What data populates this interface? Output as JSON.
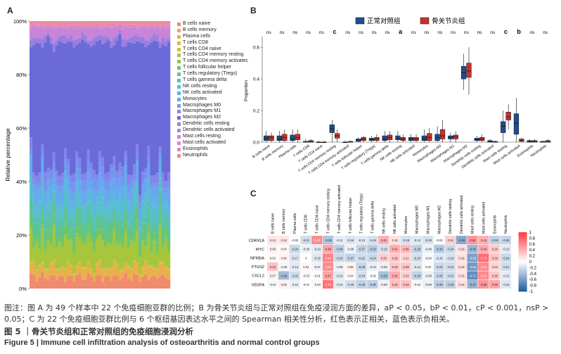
{
  "panelA": {
    "label": "A",
    "ylabel": "Relative percentage",
    "yticks": [
      "0%",
      "20%",
      "40%",
      "60%",
      "80%",
      "100%"
    ],
    "cells": [
      "B cells naive",
      "B cells memory",
      "Plasma cells",
      "T cells CD8",
      "T cells CD4 naive",
      "T cells CD4 memory resting",
      "T cells CD4 memory activated",
      "T cells follicular helper",
      "T cells regulatory (Tregs)",
      "T cells gamma delta",
      "NK cells resting",
      "NK cells activated",
      "Monocytes",
      "Macrophages M0",
      "Macrophages M1",
      "Macrophages M2",
      "Dendritic cells resting",
      "Dendritic cells activated",
      "Mast cells resting",
      "Mast cells activated",
      "Eosinophils",
      "Neutrophils"
    ],
    "legend": [
      "B cells naive",
      "B cells memory",
      "Plasma cells",
      "T cells CD8",
      "T cells CD4 naive",
      "T cells CD4 memory resting",
      "T cells CD4 memory activatec",
      "T cells follicular helper",
      "T cells regulatory (Tregs)",
      "T cells gamma delta",
      "NK cells resting",
      "NK cells activated",
      "Monocytes",
      "Macrophages M0",
      "Macrophages M1",
      "Macrophages M2",
      "Dendritic cells resting",
      "Dendritic cells activated",
      "Mast cells resting",
      "Mast cells activated",
      "Eosinophils",
      "Neutrophils"
    ],
    "colors": [
      "#f08b6e",
      "#f5a05c",
      "#e8b04a",
      "#d8bd3f",
      "#c5c43a",
      "#a7c63c",
      "#8cc84a",
      "#6fc66a",
      "#5ec48d",
      "#57c2ad",
      "#58c0c9",
      "#5cb8e0",
      "#66aaee",
      "#7496f0",
      "#8584ec",
      "#6a6ad8",
      "#9a7fe0",
      "#b27fe2",
      "#c884d8",
      "#dc88c6",
      "#e889b0",
      "#ef8a98"
    ]
  },
  "panelB": {
    "label": "B",
    "ylabel": "Proportion",
    "legend": [
      "正常对照组",
      "骨关节炎组"
    ],
    "legend_colors": [
      "#1f4e8c",
      "#c8322e"
    ],
    "yticks": [
      "0.0",
      "0.2",
      "0.4",
      "0.6"
    ],
    "ylim": [
      0,
      0.65
    ],
    "categories": [
      "B cells naive",
      "B cells memory",
      "Plasma cells",
      "T cells CD8",
      "T cells CD4 naive",
      "T cells CD4 memory resting",
      "T cells CD4 memory activated",
      "T cells follicular helper",
      "T cells regulatory (Tregs)",
      "T cells gamma delta",
      "NK cells resting",
      "NK cells activated",
      "Monocytes",
      "Macrophages M0",
      "Macrophages M1",
      "Macrophages M2",
      "Dendritic cells resting",
      "Dendritic cells activated",
      "Mast cells resting",
      "Mast cells activated",
      "Eosinophils",
      "Neutrophils"
    ],
    "significance": [
      "ns",
      "ns",
      "ns",
      "ns",
      "ns",
      "c",
      "ns",
      "ns",
      "ns",
      "ns",
      "a",
      "ns",
      "ns",
      "ns",
      "ns",
      "ns",
      "ns",
      "ns",
      "c",
      "b",
      "ns",
      "ns"
    ],
    "control": [
      [
        0,
        0.01,
        0.025,
        0.04,
        0.07
      ],
      [
        0,
        0.01,
        0.02,
        0.04,
        0.07
      ],
      [
        0,
        0.01,
        0.02,
        0.045,
        0.08
      ],
      [
        0,
        0,
        0,
        0.005,
        0.02
      ],
      [
        0,
        0,
        0,
        0,
        0.01
      ],
      [
        0,
        0.06,
        0.085,
        0.11,
        0.14
      ],
      [
        0,
        0,
        0,
        0,
        0.01
      ],
      [
        0,
        0.005,
        0.015,
        0.02,
        0.03
      ],
      [
        0,
        0.01,
        0.015,
        0.025,
        0.04
      ],
      [
        0,
        0.01,
        0.02,
        0.04,
        0.07
      ],
      [
        0,
        0.015,
        0.025,
        0.04,
        0.07
      ],
      [
        0,
        0.01,
        0.02,
        0.03,
        0.05
      ],
      [
        0,
        0.01,
        0.02,
        0.04,
        0.08
      ],
      [
        0,
        0.01,
        0.03,
        0.05,
        0.1
      ],
      [
        0,
        0.02,
        0.03,
        0.04,
        0.06
      ],
      [
        0.33,
        0.4,
        0.44,
        0.48,
        0.56
      ],
      [
        0,
        0.01,
        0.015,
        0.025,
        0.04
      ],
      [
        0,
        0,
        0.005,
        0.01,
        0.02
      ],
      [
        0,
        0.06,
        0.1,
        0.13,
        0.2
      ],
      [
        0,
        0.05,
        0.12,
        0.18,
        0.28
      ],
      [
        0,
        0,
        0.005,
        0.01,
        0.02
      ],
      [
        0,
        0,
        0,
        0.005,
        0.01
      ]
    ],
    "oa": [
      [
        0,
        0.01,
        0.03,
        0.04,
        0.06
      ],
      [
        0,
        0.01,
        0.03,
        0.05,
        0.08
      ],
      [
        0,
        0.015,
        0.03,
        0.05,
        0.08
      ],
      [
        0,
        0,
        0.005,
        0.01,
        0.02
      ],
      [
        0,
        0,
        0,
        0,
        0.01
      ],
      [
        0,
        0.025,
        0.04,
        0.055,
        0.08
      ],
      [
        0,
        0,
        0,
        0.005,
        0.01
      ],
      [
        0,
        0.01,
        0.02,
        0.03,
        0.04
      ],
      [
        0,
        0.01,
        0.02,
        0.03,
        0.05
      ],
      [
        0,
        0.015,
        0.03,
        0.045,
        0.07
      ],
      [
        0,
        0.01,
        0.02,
        0.03,
        0.05
      ],
      [
        0,
        0.01,
        0.02,
        0.03,
        0.05
      ],
      [
        0,
        0.01,
        0.03,
        0.055,
        0.09
      ],
      [
        0,
        0.02,
        0.04,
        0.08,
        0.14
      ],
      [
        0,
        0.02,
        0.035,
        0.045,
        0.07
      ],
      [
        0.3,
        0.41,
        0.45,
        0.5,
        0.6
      ],
      [
        0,
        0.01,
        0.02,
        0.03,
        0.05
      ],
      [
        0,
        0,
        0,
        0.005,
        0.01
      ],
      [
        0.08,
        0.14,
        0.16,
        0.19,
        0.24
      ],
      [
        0,
        0.005,
        0.01,
        0.02,
        0.03
      ],
      [
        0,
        0,
        0.005,
        0.01,
        0.02
      ],
      [
        0,
        0,
        0.005,
        0.01,
        0.02
      ]
    ]
  },
  "panelC": {
    "label": "C",
    "genes": [
      "CDKN1A",
      "MYC",
      "NFKBIA",
      "PTGS2",
      "CXCL2",
      "VEGFA"
    ],
    "cells": [
      "B cells naive",
      "B cells memory",
      "Plasma cells",
      "T cells CD8",
      "T cells CD4 naive",
      "T cells CD4 memory resting",
      "T cells CD4 memory activated",
      "T cells follicular helper",
      "T cells regulatory (Tregs)",
      "T cells gamma delta",
      "NK cells resting",
      "NK cells activated",
      "Monocytes",
      "Macrophages M0",
      "Macrophages M1",
      "Macrophages M2",
      "Dendritic cells resting",
      "Dendritic cells activated",
      "Mast cells resting",
      "Mast cells activated",
      "Eosinophils",
      "Neutrophils"
    ],
    "values": [
      [
        0.14,
        0.13,
        -0.02,
        -0.21,
        0.6,
        -0.36,
        -0.11,
        -0.16,
        -0.13,
        -0.19,
        0.4,
        0.15,
        -0.19,
        -0.14,
        -0.19,
        -0.02,
        0.24,
        -0.53,
        0.54,
        0.41,
        -0.29,
        -0.26
      ],
      [
        0.08,
        0.04,
        -0.24,
        -0.08,
        -0.13,
        0.46,
        -0.3,
        -0.08,
        -0.27,
        -0.32,
        -0.19,
        0.41,
        0.36,
        -0.29,
        -0.08,
        -0.33,
        -0.24,
        0.16,
        -0.45,
        0.44,
        0.26,
        -0.13
      ],
      [
        0.03,
        0.06,
        -0.17,
        0,
        -0.15,
        0.64,
        -0.23,
        -0.27,
        -0.22,
        -0.24,
        0.25,
        0.29,
        0.21,
        -0.2,
        -0.04,
        -0.15,
        -0.19,
        0.16,
        -0.59,
        0.75,
        0.29,
        -0.24
      ],
      [
        0.32,
        -0.05,
        -0.14,
        0.04,
        -0.07,
        0.6,
        -0.08,
        0.08,
        -0.26,
        -0.1,
        -0.09,
        0.29,
        0.29,
        -0.14,
        0.02,
        -0.24,
        -0.22,
        0.16,
        -0.63,
        0.61,
        0.22,
        -0.21
      ],
      [
        0.07,
        -0.42,
        -0.22,
        -0.03,
        -0.01,
        0.47,
        -0.14,
        0.04,
        -0.2,
        -0.02,
        -0.39,
        0.42,
        0.23,
        -0.28,
        -0.08,
        -0.25,
        -0.21,
        0.15,
        -0.71,
        0.61,
        0.28,
        -0.12
      ],
      [
        -0.04,
        0.08,
        -0.1,
        -0.01,
        -0.04,
        0.72,
        -0.13,
        -0.2,
        -0.28,
        -0.3,
        -0.08,
        0.33,
        0.33,
        -0.04,
        -0.09,
        -0.3,
        -0.29,
        0.16,
        -0.47,
        0.55,
        0.45,
        -0.15
      ]
    ],
    "colorbar": [
      "1",
      "0.8",
      "0.6",
      "0.4",
      "0.2",
      "0",
      "-0.2",
      "-0.4",
      "-0.6",
      "-0.8",
      "-1"
    ]
  },
  "caption": {
    "line1": "图注：图 A 为 49 个样本中 22 个免疫细胞亚群的比例；B 为骨关节炎组与正常对照组在免疫浸润方面的差异，aP < 0.05，bP < 0.01，cP < 0.001，nsP >",
    "line2": "0.05；C 为 22 个免疫细胞亚群比例与 6 个枢纽基因表达水平之间的 Spearman 相关性分析，红色表示正相关，蓝色表示负相关。"
  },
  "figure_title_cn": "图 5 ｜骨关节炎组和正常对照组的免疫细胞浸润分析",
  "figure_title_en": "Figure 5  |  Immune cell infiltration analysis of osteoarthritis and normal control groups"
}
